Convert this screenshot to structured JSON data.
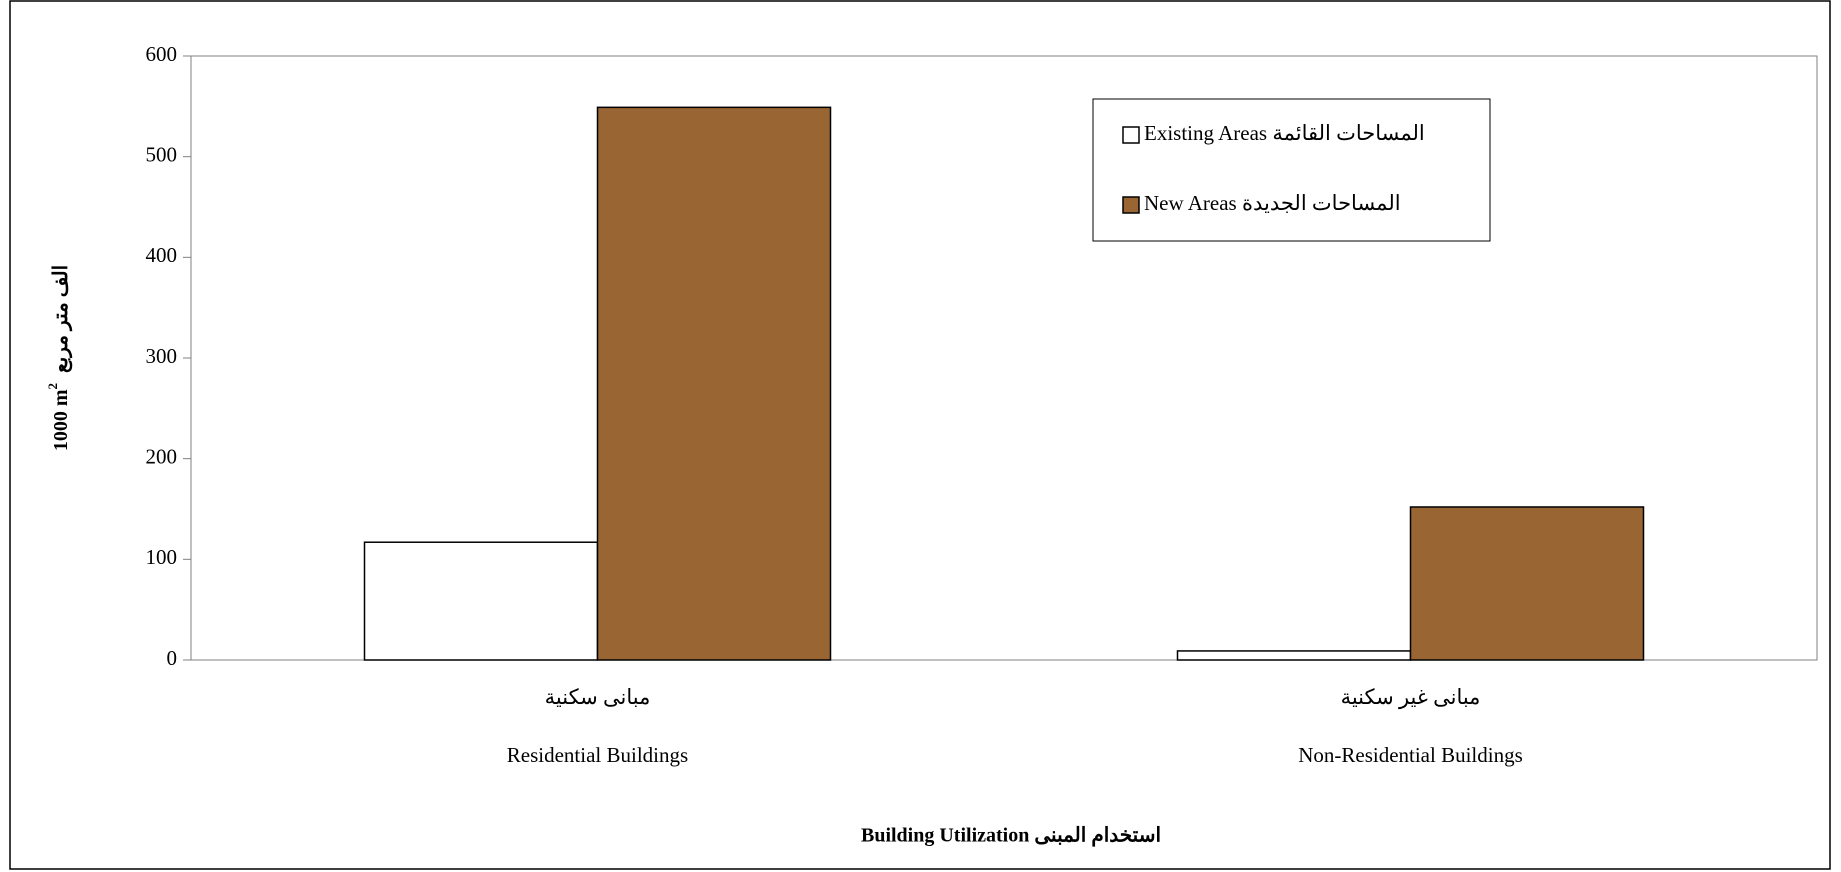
{
  "chart_data": {
    "type": "bar",
    "y_label": {
      "text": "1000 m",
      "sup": "2",
      "arabic": "الف متر مربع"
    },
    "x_label": "Building Utilization استخدام المبنى",
    "categories": [
      "Residential Buildings",
      "Non-Residential Buildings"
    ],
    "categories_arabic": [
      "مبانى سكنية",
      "مبانى غير سكنية"
    ],
    "series": [
      {
        "name": "Existing Areas المساحات القائمة",
        "color": "#ffffff",
        "values": [
          117,
          9
        ]
      },
      {
        "name": "New Areas المساحات الجديدة",
        "color": "#996633",
        "values": [
          549,
          152
        ]
      }
    ],
    "ylim": [
      0,
      600
    ],
    "yticks": [
      0,
      100,
      200,
      300,
      400,
      500,
      600
    ],
    "grid": false
  }
}
